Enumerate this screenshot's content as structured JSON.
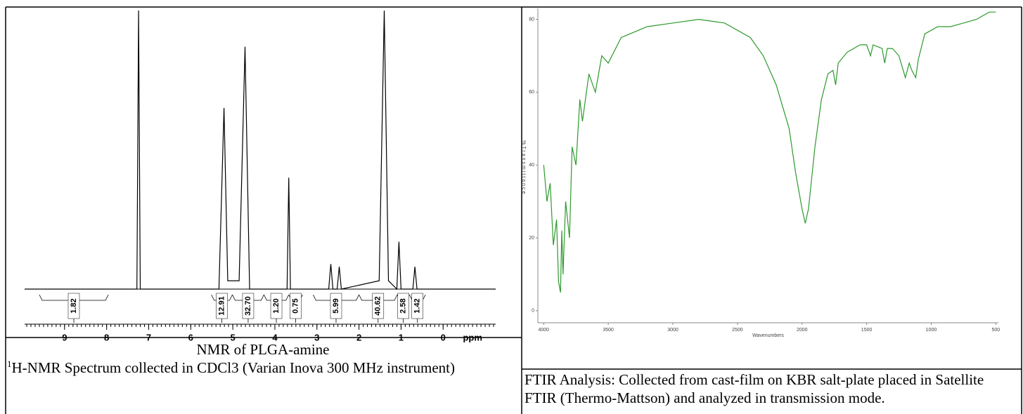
{
  "chart_data": [
    {
      "type": "line",
      "xlabel": "ppm",
      "xlim": [
        9.95,
        -1.25
      ],
      "ylim": [
        0,
        100
      ],
      "xticks": [
        9,
        8,
        7,
        6,
        5,
        4,
        3,
        2,
        1,
        0
      ],
      "color": "#000000",
      "x": [
        9.95,
        7.28,
        7.24,
        7.2,
        5.33,
        5.21,
        5.12,
        4.85,
        4.71,
        4.6,
        3.71,
        3.67,
        3.63,
        2.72,
        2.67,
        2.62,
        2.52,
        2.47,
        2.42,
        1.52,
        1.4,
        1.3,
        1.1,
        1.05,
        1.0,
        0.72,
        0.67,
        0.62,
        -1.25
      ],
      "values": [
        0,
        0,
        100,
        0,
        0,
        65,
        3,
        3,
        87,
        0,
        0,
        40,
        0,
        0,
        9,
        0,
        0,
        8,
        0,
        3,
        100,
        3,
        0,
        17,
        0,
        0,
        8,
        0,
        0
      ],
      "integrals": {
        "from": [
          9.6,
          5.51,
          5.01,
          4.26,
          3.67,
          3.09,
          2.0,
          1.09,
          0.8
        ],
        "to": [
          7.96,
          5.01,
          4.26,
          3.67,
          3.34,
          2.0,
          1.09,
          0.8,
          0.42
        ],
        "values": [
          1.82,
          12.91,
          32.7,
          1.2,
          0.75,
          5.99,
          40.62,
          2.58,
          1.42
        ],
        "value_labels": [
          "1.82",
          "12.91",
          "32.70",
          "1.20",
          "0.75",
          "5.99",
          "40.62",
          "2.58",
          "1.42"
        ]
      }
    },
    {
      "type": "line",
      "xlabel": "Wavenumbers",
      "ylabel": "%Transmittance",
      "xlim": [
        4045,
        480
      ],
      "ylim": [
        -3.3,
        83
      ],
      "xticks": [
        4000,
        3500,
        3000,
        2500,
        2000,
        1500,
        1000,
        500
      ],
      "yticks": [
        0,
        20,
        40,
        60,
        80
      ],
      "color": "#2e9a2e",
      "x": [
        4000,
        3975,
        3950,
        3925,
        3900,
        3885,
        3870,
        3860,
        3850,
        3830,
        3800,
        3780,
        3750,
        3720,
        3700,
        3650,
        3600,
        3550,
        3500,
        3400,
        3200,
        3000,
        2800,
        2600,
        2400,
        2300,
        2200,
        2100,
        2050,
        2000,
        1975,
        1950,
        1900,
        1850,
        1800,
        1760,
        1740,
        1720,
        1650,
        1550,
        1500,
        1470,
        1450,
        1380,
        1360,
        1340,
        1300,
        1250,
        1200,
        1170,
        1150,
        1120,
        1100,
        1050,
        950,
        850,
        750,
        650,
        550,
        500
      ],
      "values": [
        40,
        30,
        35,
        18,
        25,
        8,
        5,
        22,
        10,
        30,
        20,
        45,
        40,
        58,
        52,
        65,
        60,
        70,
        68,
        75,
        78,
        79,
        80,
        79,
        75,
        70,
        62,
        50,
        38,
        28,
        24,
        28,
        45,
        58,
        65,
        66,
        62,
        68,
        71,
        73,
        73,
        70,
        73,
        72,
        68,
        72,
        72,
        70,
        64,
        68,
        66,
        64,
        69,
        76,
        78,
        78,
        79,
        80,
        82,
        82
      ]
    }
  ],
  "captions": [
    {
      "title": "NMR of PLGA-amine",
      "superscript": "1",
      "text": "H-NMR Spectrum collected in CDCl3 (Varian Inova 300 MHz instrument)"
    },
    {
      "text": "FTIR Analysis: Collected from cast-film on KBR salt-plate placed in Satellite FTIR (Thermo-Mattson) and analyzed in transmission mode."
    }
  ]
}
